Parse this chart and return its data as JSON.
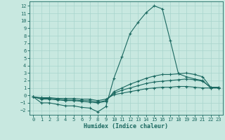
{
  "xlabel": "Humidex (Indice chaleur)",
  "background_color": "#c8e8e0",
  "grid_color": "#a8d4cc",
  "line_color": "#1a6860",
  "xlim": [
    -0.5,
    23.5
  ],
  "ylim": [
    -2.6,
    12.6
  ],
  "xticks": [
    0,
    1,
    2,
    3,
    4,
    5,
    6,
    7,
    8,
    9,
    10,
    11,
    12,
    13,
    14,
    15,
    16,
    17,
    18,
    19,
    20,
    21,
    22,
    23
  ],
  "yticks": [
    -2,
    -1,
    0,
    1,
    2,
    3,
    4,
    5,
    6,
    7,
    8,
    9,
    10,
    11,
    12
  ],
  "line1_x": [
    0,
    1,
    2,
    3,
    4,
    5,
    6,
    7,
    8,
    9,
    10,
    11,
    12,
    13,
    14,
    15,
    16,
    17,
    18,
    19,
    20,
    21,
    22,
    23
  ],
  "line1_y": [
    -0.2,
    -1.0,
    -1.0,
    -1.2,
    -1.4,
    -1.4,
    -1.6,
    -1.7,
    -2.2,
    -1.5,
    2.3,
    5.2,
    8.3,
    9.8,
    11.1,
    12.0,
    11.6,
    7.3,
    2.9,
    2.5,
    2.2,
    2.0,
    1.0,
    1.0
  ],
  "line2_x": [
    0,
    1,
    2,
    3,
    4,
    5,
    6,
    7,
    8,
    9,
    10,
    11,
    12,
    13,
    14,
    15,
    16,
    17,
    18,
    19,
    20,
    21,
    22,
    23
  ],
  "line2_y": [
    -0.2,
    -0.5,
    -0.5,
    -0.6,
    -0.7,
    -0.7,
    -0.8,
    -0.9,
    -1.0,
    -0.8,
    0.5,
    1.0,
    1.5,
    1.9,
    2.3,
    2.6,
    2.8,
    2.8,
    2.9,
    3.0,
    2.8,
    2.5,
    1.1,
    1.1
  ],
  "line3_x": [
    0,
    1,
    2,
    3,
    4,
    5,
    6,
    7,
    8,
    9,
    10,
    11,
    12,
    13,
    14,
    15,
    16,
    17,
    18,
    19,
    20,
    21,
    22,
    23
  ],
  "line3_y": [
    -0.2,
    -0.4,
    -0.4,
    -0.5,
    -0.6,
    -0.6,
    -0.7,
    -0.7,
    -0.9,
    -0.7,
    0.3,
    0.7,
    1.0,
    1.3,
    1.6,
    1.8,
    1.9,
    2.0,
    2.1,
    2.2,
    2.1,
    1.9,
    1.1,
    1.1
  ],
  "line4_x": [
    0,
    1,
    2,
    3,
    4,
    5,
    6,
    7,
    8,
    9,
    10,
    11,
    12,
    13,
    14,
    15,
    16,
    17,
    18,
    19,
    20,
    21,
    22,
    23
  ],
  "line4_y": [
    -0.2,
    -0.3,
    -0.3,
    -0.4,
    -0.4,
    -0.4,
    -0.5,
    -0.5,
    -0.7,
    -0.5,
    0.1,
    0.3,
    0.5,
    0.7,
    0.9,
    1.0,
    1.1,
    1.1,
    1.2,
    1.2,
    1.1,
    1.0,
    1.0,
    1.0
  ]
}
